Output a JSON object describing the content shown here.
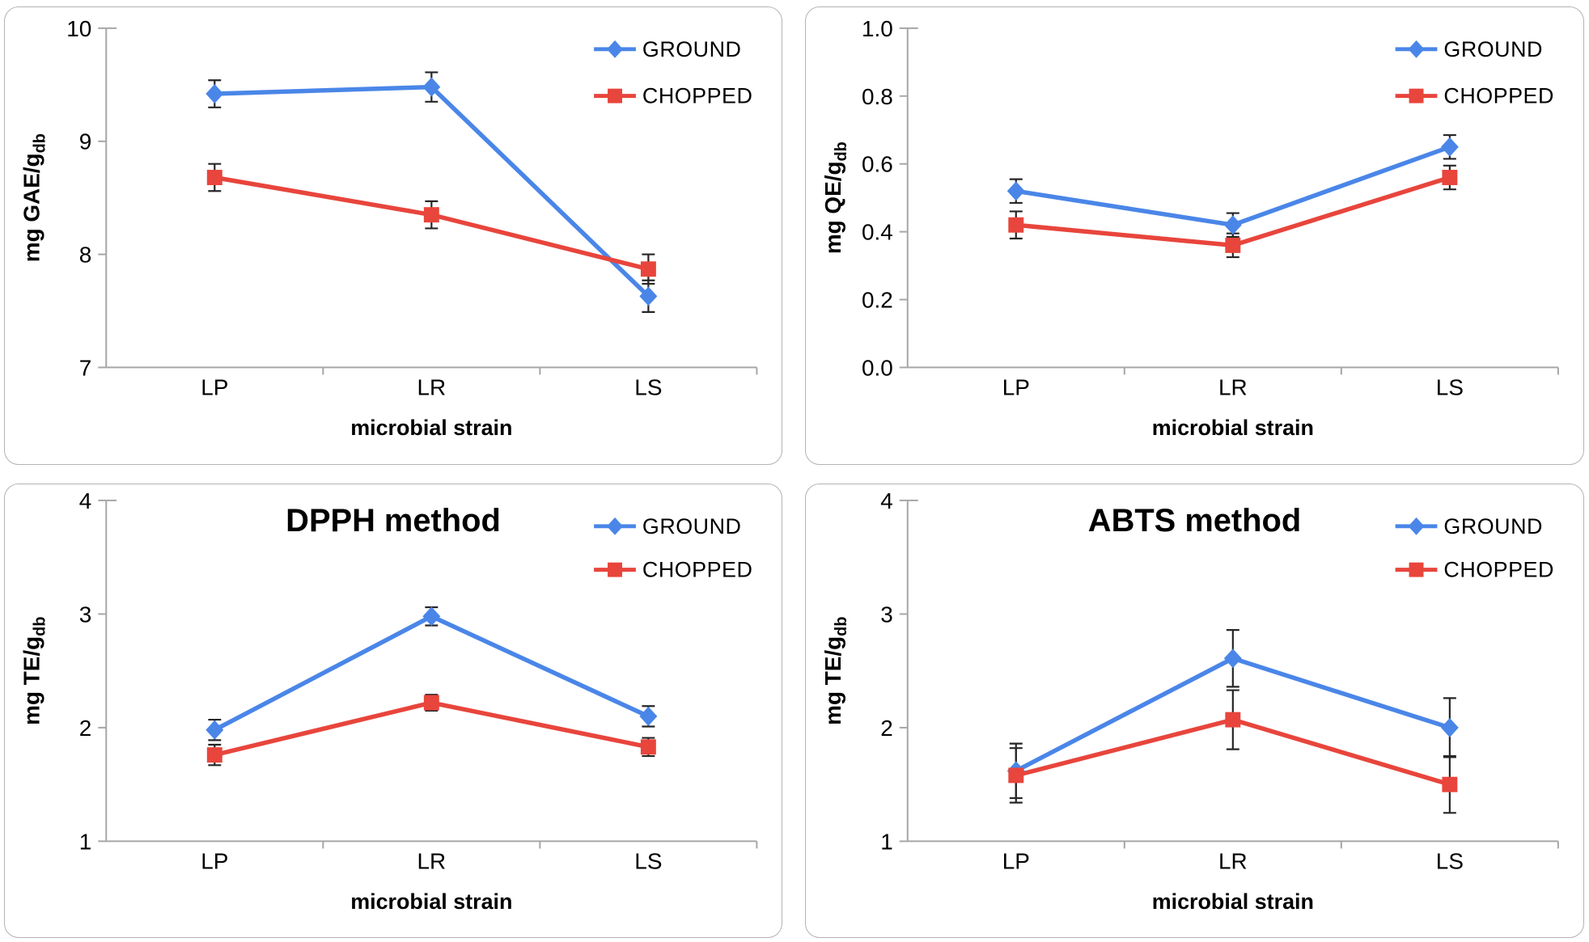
{
  "colors": {
    "ground": "#4a86e8",
    "chopped": "#e8453c",
    "axis": "#a6a6a6",
    "error_bar": "#262626",
    "text": "#000000",
    "panel_border": "#b3b3b8",
    "background": "#ffffff"
  },
  "legend": [
    "GROUND",
    "CHOPPED"
  ],
  "chart_data": [
    {
      "type": "line",
      "title": "",
      "ylabel": "mg GAE/g",
      "ylabel_sub": "db",
      "xlabel": "microbial strain",
      "categories": [
        "LP",
        "LR",
        "LS"
      ],
      "ylim": [
        7,
        10
      ],
      "yticks": [
        "7",
        "8",
        "9",
        "10"
      ],
      "grid": false,
      "legend_position": "top-right",
      "series": [
        {
          "name": "GROUND",
          "marker": "diamond",
          "color": "#4a86e8",
          "values": [
            9.42,
            9.48,
            7.63
          ],
          "errors": [
            0.12,
            0.13,
            0.14
          ]
        },
        {
          "name": "CHOPPED",
          "marker": "square",
          "color": "#e8453c",
          "values": [
            8.68,
            8.35,
            7.87
          ],
          "errors": [
            0.12,
            0.12,
            0.13
          ]
        }
      ]
    },
    {
      "type": "line",
      "title": "",
      "ylabel": "mg QE/g",
      "ylabel_sub": "db",
      "xlabel": "microbial strain",
      "categories": [
        "LP",
        "LR",
        "LS"
      ],
      "ylim": [
        0.0,
        1.0
      ],
      "yticks": [
        "0.0",
        "0.2",
        "0.4",
        "0.6",
        "0.8",
        "1.0"
      ],
      "grid": false,
      "legend_position": "top-right",
      "series": [
        {
          "name": "GROUND",
          "marker": "diamond",
          "color": "#4a86e8",
          "values": [
            0.52,
            0.42,
            0.65
          ],
          "errors": [
            0.035,
            0.035,
            0.035
          ]
        },
        {
          "name": "CHOPPED",
          "marker": "square",
          "color": "#e8453c",
          "values": [
            0.42,
            0.36,
            0.56
          ],
          "errors": [
            0.04,
            0.035,
            0.035
          ]
        }
      ]
    },
    {
      "type": "line",
      "title": "DPPH method",
      "ylabel": "mg TE/g",
      "ylabel_sub": "db",
      "xlabel": "microbial strain",
      "categories": [
        "LP",
        "LR",
        "LS"
      ],
      "ylim": [
        1,
        4
      ],
      "yticks": [
        "1",
        "2",
        "3",
        "4"
      ],
      "grid": false,
      "legend_position": "top-right",
      "series": [
        {
          "name": "GROUND",
          "marker": "diamond",
          "color": "#4a86e8",
          "values": [
            1.98,
            2.98,
            2.1
          ],
          "errors": [
            0.09,
            0.08,
            0.09
          ]
        },
        {
          "name": "CHOPPED",
          "marker": "square",
          "color": "#e8453c",
          "values": [
            1.76,
            2.22,
            1.83
          ],
          "errors": [
            0.09,
            0.07,
            0.08
          ]
        }
      ]
    },
    {
      "type": "line",
      "title": "ABTS method",
      "ylabel": "mg TE/g",
      "ylabel_sub": "db",
      "xlabel": "microbial strain",
      "categories": [
        "LP",
        "LR",
        "LS"
      ],
      "ylim": [
        1,
        4
      ],
      "yticks": [
        "1",
        "2",
        "3",
        "4"
      ],
      "grid": false,
      "legend_position": "top-right",
      "series": [
        {
          "name": "GROUND",
          "marker": "diamond",
          "color": "#4a86e8",
          "values": [
            1.62,
            2.61,
            2.0
          ],
          "errors": [
            0.24,
            0.25,
            0.26
          ]
        },
        {
          "name": "CHOPPED",
          "marker": "square",
          "color": "#e8453c",
          "values": [
            1.58,
            2.07,
            1.5
          ],
          "errors": [
            0.24,
            0.26,
            0.25
          ]
        }
      ]
    }
  ]
}
